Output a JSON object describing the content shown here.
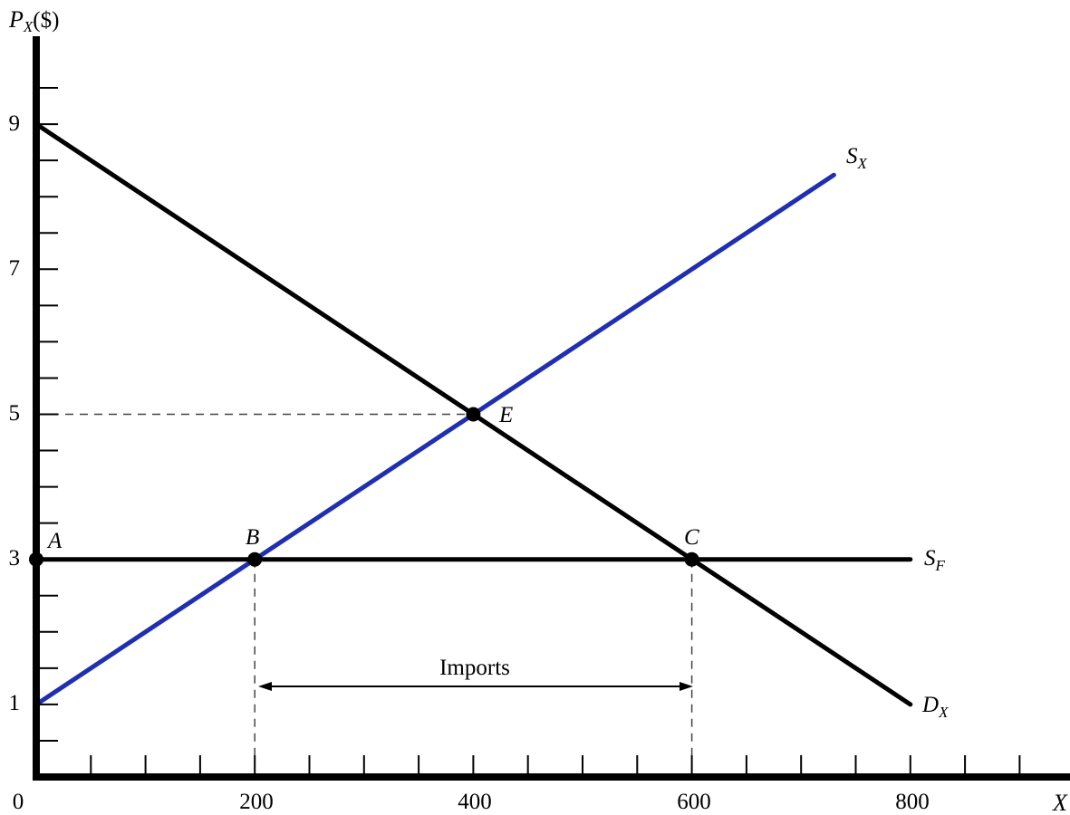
{
  "chart_data": {
    "type": "line",
    "y_axis": {
      "title_main": "P",
      "title_sub": "X",
      "title_suffix": "($)",
      "ticks": [
        "1",
        "3",
        "5",
        "7",
        "9"
      ],
      "range": [
        0,
        10.5
      ]
    },
    "x_axis": {
      "title": "X",
      "ticks": [
        "0",
        "200",
        "400",
        "600",
        "800"
      ],
      "range": [
        0,
        950
      ]
    },
    "series": [
      {
        "label_main": "D",
        "label_sub": "X",
        "color": "#000000",
        "points": [
          [
            0,
            9
          ],
          [
            800,
            1
          ]
        ]
      },
      {
        "label_main": "S",
        "label_sub": "X",
        "color": "#1f2fb0",
        "points": [
          [
            0,
            1
          ],
          [
            730,
            8.3
          ]
        ]
      },
      {
        "label_main": "S",
        "label_sub": "F",
        "color": "#000000",
        "points": [
          [
            0,
            3
          ],
          [
            800,
            3
          ]
        ]
      }
    ],
    "points": [
      {
        "label": "A",
        "x": 0,
        "y": 3
      },
      {
        "label": "B",
        "x": 200,
        "y": 3
      },
      {
        "label": "C",
        "x": 600,
        "y": 3
      },
      {
        "label": "E",
        "x": 400,
        "y": 5
      }
    ],
    "annotation": {
      "text": "Imports",
      "from_x": 200,
      "to_x": 600
    }
  }
}
